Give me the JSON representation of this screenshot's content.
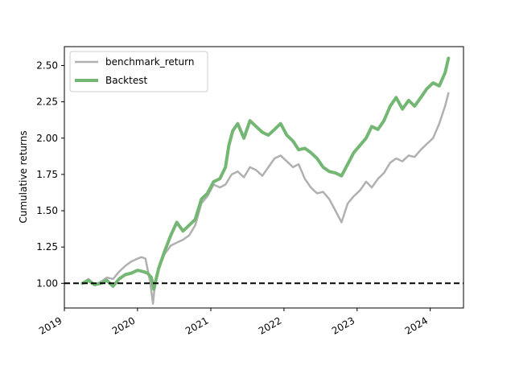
{
  "chart_data": {
    "type": "line",
    "title": "",
    "xlabel": "",
    "ylabel": "Cumulative returns",
    "xlim": [
      "2019-01-01",
      "2024-06-15"
    ],
    "ylim": [
      0.83,
      2.63
    ],
    "x_ticks": [
      "2019",
      "2020",
      "2021",
      "2022",
      "2023",
      "2024"
    ],
    "y_ticks": [
      "1.00",
      "1.25",
      "1.50",
      "1.75",
      "2.00",
      "2.25",
      "2.50"
    ],
    "grid": false,
    "legend": {
      "placement": "top-left",
      "entries": [
        "benchmark_return",
        "Backtest"
      ]
    },
    "baseline": {
      "y": 1.0,
      "style": "dashed",
      "color": "#000000"
    },
    "series": [
      {
        "name": "benchmark_return",
        "color": "#b0b0b0",
        "x": [
          "2019-04-01",
          "2019-05-01",
          "2019-06-01",
          "2019-07-01",
          "2019-08-01",
          "2019-09-01",
          "2019-10-01",
          "2019-11-01",
          "2019-12-01",
          "2020-01-01",
          "2020-01-20",
          "2020-02-10",
          "2020-02-20",
          "2020-03-05",
          "2020-03-18",
          "2020-03-25",
          "2020-04-15",
          "2020-05-15",
          "2020-06-15",
          "2020-07-15",
          "2020-08-15",
          "2020-09-15",
          "2020-10-15",
          "2020-11-15",
          "2020-12-15",
          "2021-01-15",
          "2021-02-15",
          "2021-03-15",
          "2021-04-15",
          "2021-05-15",
          "2021-06-15",
          "2021-07-15",
          "2021-08-15",
          "2021-09-15",
          "2021-10-15",
          "2021-11-15",
          "2021-12-15",
          "2022-01-15",
          "2022-02-15",
          "2022-03-15",
          "2022-04-15",
          "2022-05-15",
          "2022-06-15",
          "2022-07-15",
          "2022-08-15",
          "2022-09-15",
          "2022-10-15",
          "2022-11-15",
          "2022-12-15",
          "2023-01-15",
          "2023-02-15",
          "2023-03-15",
          "2023-04-15",
          "2023-05-15",
          "2023-06-15",
          "2023-07-15",
          "2023-08-15",
          "2023-09-15",
          "2023-10-15",
          "2023-11-15",
          "2023-12-15",
          "2024-01-15",
          "2024-02-15",
          "2024-03-15",
          "2024-04-01"
        ],
        "y": [
          1.0,
          1.03,
          0.99,
          1.01,
          1.04,
          1.03,
          1.08,
          1.12,
          1.15,
          1.17,
          1.18,
          1.17,
          1.1,
          1.0,
          0.86,
          0.95,
          1.1,
          1.2,
          1.26,
          1.28,
          1.3,
          1.33,
          1.4,
          1.55,
          1.6,
          1.68,
          1.66,
          1.68,
          1.75,
          1.77,
          1.73,
          1.8,
          1.78,
          1.74,
          1.8,
          1.86,
          1.88,
          1.84,
          1.8,
          1.82,
          1.72,
          1.66,
          1.62,
          1.63,
          1.58,
          1.5,
          1.42,
          1.55,
          1.6,
          1.64,
          1.7,
          1.66,
          1.72,
          1.76,
          1.83,
          1.86,
          1.84,
          1.88,
          1.87,
          1.92,
          1.96,
          2.0,
          2.1,
          2.22,
          2.31
        ]
      },
      {
        "name": "Backtest",
        "color": "#74b774",
        "x": [
          "2019-04-01",
          "2019-05-01",
          "2019-06-01",
          "2019-07-01",
          "2019-08-01",
          "2019-09-01",
          "2019-10-01",
          "2019-11-01",
          "2019-12-01",
          "2020-01-01",
          "2020-02-01",
          "2020-02-20",
          "2020-03-10",
          "2020-03-22",
          "2020-04-15",
          "2020-05-15",
          "2020-06-15",
          "2020-07-15",
          "2020-08-15",
          "2020-09-15",
          "2020-10-15",
          "2020-11-15",
          "2020-12-15",
          "2021-01-15",
          "2021-02-15",
          "2021-03-15",
          "2021-04-01",
          "2021-04-20",
          "2021-05-15",
          "2021-06-15",
          "2021-07-15",
          "2021-08-15",
          "2021-09-15",
          "2021-10-15",
          "2021-11-15",
          "2021-12-15",
          "2022-01-15",
          "2022-02-15",
          "2022-03-15",
          "2022-04-15",
          "2022-05-15",
          "2022-06-15",
          "2022-07-15",
          "2022-08-15",
          "2022-09-15",
          "2022-10-15",
          "2022-11-15",
          "2022-12-15",
          "2023-01-15",
          "2023-02-15",
          "2023-03-15",
          "2023-04-15",
          "2023-05-15",
          "2023-06-15",
          "2023-07-15",
          "2023-08-15",
          "2023-09-15",
          "2023-10-15",
          "2023-11-15",
          "2023-12-15",
          "2024-01-15",
          "2024-02-15",
          "2024-03-15",
          "2024-04-01"
        ],
        "y": [
          1.0,
          1.02,
          0.99,
          1.0,
          1.02,
          0.98,
          1.03,
          1.06,
          1.07,
          1.09,
          1.08,
          1.07,
          1.04,
          0.96,
          1.1,
          1.22,
          1.33,
          1.42,
          1.36,
          1.4,
          1.44,
          1.58,
          1.62,
          1.7,
          1.72,
          1.8,
          1.95,
          2.05,
          2.1,
          2.0,
          2.12,
          2.08,
          2.04,
          2.02,
          2.06,
          2.1,
          2.02,
          1.98,
          1.92,
          1.93,
          1.9,
          1.86,
          1.8,
          1.77,
          1.76,
          1.74,
          1.82,
          1.9,
          1.95,
          2.0,
          2.08,
          2.06,
          2.12,
          2.22,
          2.28,
          2.2,
          2.26,
          2.22,
          2.28,
          2.34,
          2.38,
          2.36,
          2.45,
          2.55
        ]
      }
    ]
  }
}
